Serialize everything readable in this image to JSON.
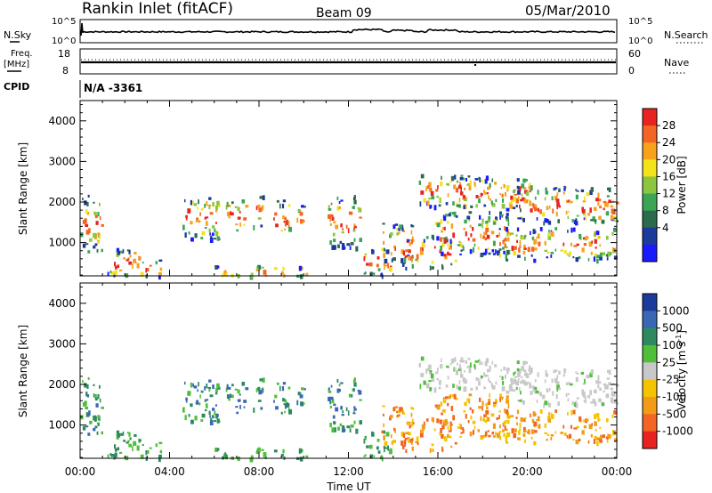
{
  "header": {
    "station": "Rankin Inlet (fitACF)",
    "beam": "Beam 09",
    "date": "05/Mar/2010"
  },
  "top_panels": {
    "nsky_label": "N.Sky",
    "nsky_ticks": [
      "10^5",
      "10^0"
    ],
    "nsearch_label": "N.Search",
    "nsearch_ticks": [
      "10^5",
      "10^0"
    ],
    "freq_label_1": "Freq.",
    "freq_label_2": "[MHz]",
    "freq_ticks": [
      "18",
      "8"
    ],
    "nave_label": "Nave",
    "nave_ticks": [
      "60",
      "0"
    ],
    "cpid_label": "CPID",
    "cpid_value": "N/A -3361"
  },
  "chart_data": [
    {
      "type": "heatmap",
      "title": "",
      "xlabel": "",
      "ylabel": "Slant Range [km]",
      "x_ticks": [
        "00:00",
        "04:00",
        "08:00",
        "12:00",
        "16:00",
        "20:00",
        "00:00"
      ],
      "y_ticks": [
        "1000",
        "2000",
        "3000",
        "4000"
      ],
      "ylim": [
        180,
        4500
      ],
      "colorbar": {
        "label": "Power [dB]",
        "ticks": [
          "28",
          "24",
          "20",
          "16",
          "12",
          "8",
          "4"
        ],
        "colors": [
          "#e8231f",
          "#f26522",
          "#f7a21b",
          "#f4e31a",
          "#8cc63f",
          "#3aa655",
          "#2b6a4a",
          "#1b3b9a",
          "#1a1aff"
        ]
      }
    },
    {
      "type": "heatmap",
      "title": "",
      "xlabel": "Time UT",
      "ylabel": "Slant Range [km]",
      "x_ticks": [
        "00:00",
        "04:00",
        "08:00",
        "12:00",
        "16:00",
        "20:00",
        "00:00"
      ],
      "y_ticks": [
        "1000",
        "2000",
        "3000",
        "4000"
      ],
      "ylim": [
        180,
        4500
      ],
      "colorbar": {
        "label": "Velocity [m s",
        "label_sup": "-1",
        "label_end": "]",
        "ticks": [
          "1000",
          "500",
          "100",
          "25",
          "-25",
          "-100",
          "-500",
          "-1000"
        ],
        "colors": [
          "#1b3b9a",
          "#3a67b4",
          "#2d8a5f",
          "#4fbf3a",
          "#c8c8c8",
          "#f4c400",
          "#f39b16",
          "#f26522",
          "#e8231f"
        ]
      }
    }
  ],
  "colors": {
    "ground": "#bdbdbd",
    "frame": "#000000"
  }
}
